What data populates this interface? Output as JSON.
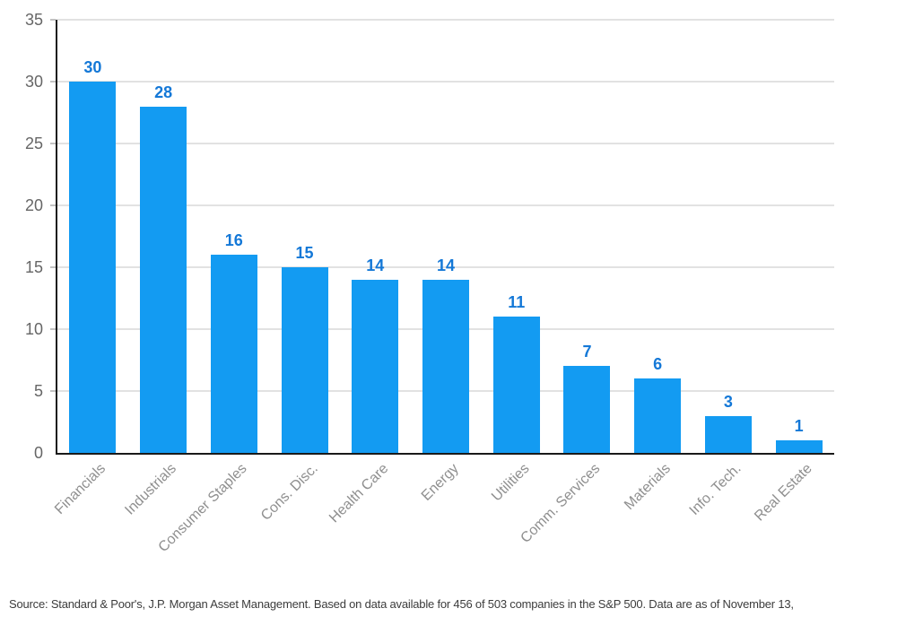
{
  "chart_data": {
    "type": "bar",
    "categories": [
      "Financials",
      "Industrials",
      "Consumer Staples",
      "Cons. Disc.",
      "Health Care",
      "Energy",
      "Utilities",
      "Comm. Services",
      "Materials",
      "Info. Tech.",
      "Real Estate"
    ],
    "values": [
      30,
      28,
      16,
      15,
      14,
      14,
      11,
      7,
      6,
      3,
      1
    ],
    "title": "",
    "xlabel": "",
    "ylabel": "",
    "ylim": [
      0,
      35
    ],
    "yticks": [
      0,
      5,
      10,
      15,
      20,
      25,
      30,
      35
    ],
    "grid": true,
    "legend": "none",
    "bar_color": "#139bf2",
    "value_label_color": "#1478d7",
    "gridline_color": "#e2e2e2",
    "axis_color": "#1a1a1a",
    "ytick_label_color": "#666666",
    "xtick_label_color": "#8f8f8f"
  },
  "footer": {
    "source_text": "Source: Standard & Poor's, J.P. Morgan Asset Management. Based on data available for 456 of 503 companies in the S&P 500. Data are as of November 13,"
  }
}
